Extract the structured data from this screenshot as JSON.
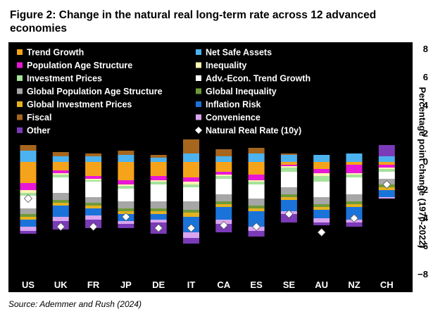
{
  "figure": {
    "title": "Figure 2: Change in the natural real long-term rate across 12 advanced economies",
    "source": "Source: Ademmer and Rush (2024)"
  },
  "chart_data": {
    "type": "bar",
    "stacked": true,
    "categories": [
      "US",
      "UK",
      "FR",
      "JP",
      "DE",
      "IT",
      "CA",
      "ES",
      "SE",
      "AU",
      "NZ",
      "CH"
    ],
    "ylabel": "Percentage point change (1970-2022)",
    "ylim": [
      -8,
      8
    ],
    "yticks": [
      8,
      6,
      4,
      2,
      0,
      -2,
      -4,
      -6,
      -8
    ],
    "legend_position": "top",
    "background": "#000000",
    "series": [
      {
        "name": "Trend Growth",
        "color": "#f5a31a",
        "values": [
          -1.5,
          -0.6,
          -1.0,
          -1.3,
          -1.0,
          -1.1,
          -0.7,
          -0.9,
          -0.2,
          -0.5,
          -0.2,
          -0.2
        ]
      },
      {
        "name": "Net Safe Assets",
        "color": "#4db3f0",
        "values": [
          0.8,
          0.4,
          0.4,
          0.5,
          0.3,
          0.6,
          0.4,
          0.6,
          0.5,
          0.5,
          0.6,
          0.4
        ]
      },
      {
        "name": "Population Age Structure",
        "color": "#e817d6",
        "values": [
          -0.5,
          -0.2,
          -0.2,
          -0.3,
          -0.3,
          -0.3,
          -0.2,
          -0.4,
          -0.1,
          -0.3,
          -0.6,
          -0.2
        ]
      },
      {
        "name": "Inequality",
        "color": "#fff5b3",
        "values": [
          -0.2,
          -0.1,
          -0.1,
          -0.1,
          -0.1,
          -0.2,
          -0.1,
          -0.1,
          -0.1,
          -0.2,
          -0.1,
          -0.1
        ]
      },
      {
        "name": "Investment Prices",
        "color": "#a5e29a",
        "values": [
          -0.2,
          -0.2,
          -0.1,
          -0.2,
          -0.2,
          -0.2,
          -0.2,
          -0.2,
          -0.3,
          -0.4,
          -0.2,
          -0.2
        ]
      },
      {
        "name": "Adv.-Econ. Trend Growth",
        "color": "#ffffff",
        "values": [
          -0.9,
          -1.1,
          -1.1,
          -0.9,
          -1.2,
          -1.0,
          -1.1,
          -1.0,
          -1.1,
          -1.1,
          -1.2,
          -0.5
        ]
      },
      {
        "name": "Global Population Age Structure",
        "color": "#a6a6a6",
        "values": [
          -0.4,
          -0.5,
          -0.4,
          -0.5,
          -0.5,
          -0.6,
          -0.5,
          -0.5,
          -0.5,
          -0.5,
          -0.5,
          -0.4
        ]
      },
      {
        "name": "Global Inequality",
        "color": "#6f9a3a",
        "values": [
          -0.2,
          -0.2,
          -0.2,
          -0.2,
          -0.2,
          -0.2,
          -0.2,
          -0.2,
          -0.2,
          -0.2,
          -0.2,
          -0.2
        ]
      },
      {
        "name": "Global Investment Prices",
        "color": "#e5b21e",
        "values": [
          -0.2,
          -0.2,
          -0.2,
          -0.2,
          -0.2,
          -0.3,
          -0.2,
          -0.2,
          -0.2,
          -0.2,
          -0.2,
          -0.2
        ]
      },
      {
        "name": "Inflation Risk",
        "color": "#1a73d9",
        "values": [
          -0.5,
          -0.8,
          -0.5,
          -0.5,
          -0.4,
          -1.1,
          -0.9,
          -1.1,
          -0.8,
          -0.6,
          -0.9,
          -0.5
        ]
      },
      {
        "name": "Fiscal",
        "color": "#a6661e",
        "values": [
          0.4,
          0.3,
          0.2,
          0.3,
          0.2,
          1.0,
          0.5,
          0.4,
          0.1,
          0.0,
          0.0,
          0.0
        ]
      },
      {
        "name": "Convenience",
        "color": "#d9a5f0",
        "values": [
          -0.3,
          -0.3,
          -0.3,
          -0.2,
          -0.2,
          -0.4,
          -0.3,
          -0.3,
          -0.2,
          -0.3,
          -0.2,
          -0.1
        ]
      },
      {
        "name": "Other",
        "color": "#7b3ab8",
        "values": [
          -0.2,
          -0.6,
          -0.6,
          -0.3,
          -0.8,
          -0.4,
          -0.6,
          -0.4,
          -0.6,
          -0.2,
          -0.3,
          0.8
        ]
      }
    ],
    "natural_real_rate": {
      "name": "Natural Real Rate (10y)",
      "color": "#ffffff",
      "values": [
        -2.6,
        -4.6,
        -4.6,
        -3.9,
        -4.7,
        -4.7,
        -4.5,
        -4.6,
        -3.7,
        -5.0,
        -4.0,
        -1.6
      ]
    }
  }
}
